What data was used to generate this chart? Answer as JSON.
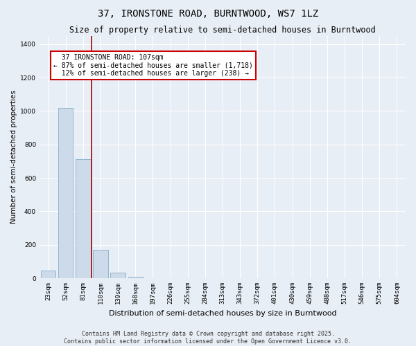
{
  "title": "37, IRONSTONE ROAD, BURNTWOOD, WS7 1LZ",
  "subtitle": "Size of property relative to semi-detached houses in Burntwood",
  "xlabel": "Distribution of semi-detached houses by size in Burntwood",
  "ylabel": "Number of semi-detached properties",
  "categories": [
    "23sqm",
    "52sqm",
    "81sqm",
    "110sqm",
    "139sqm",
    "168sqm",
    "197sqm",
    "226sqm",
    "255sqm",
    "284sqm",
    "313sqm",
    "343sqm",
    "372sqm",
    "401sqm",
    "430sqm",
    "459sqm",
    "488sqm",
    "517sqm",
    "546sqm",
    "575sqm",
    "604sqm"
  ],
  "values": [
    45,
    1020,
    710,
    170,
    35,
    10,
    0,
    0,
    0,
    0,
    0,
    0,
    0,
    0,
    0,
    0,
    0,
    0,
    0,
    0,
    0
  ],
  "bar_color": "#ccdaea",
  "bar_edge_color": "#8aafc8",
  "vline_x": 2.5,
  "vline_color": "#aa0000",
  "annotation_text": "  37 IRONSTONE ROAD: 107sqm  \n← 87% of semi-detached houses are smaller (1,718)\n  12% of semi-detached houses are larger (238) →",
  "annotation_box_color": "#ffffff",
  "annotation_box_edgecolor": "#cc0000",
  "ylim": [
    0,
    1450
  ],
  "yticks": [
    0,
    200,
    400,
    600,
    800,
    1000,
    1200,
    1400
  ],
  "background_color": "#e8eef5",
  "plot_background": "#e8eef5",
  "grid_color": "#ffffff",
  "footer_line1": "Contains HM Land Registry data © Crown copyright and database right 2025.",
  "footer_line2": "Contains public sector information licensed under the Open Government Licence v3.0.",
  "title_fontsize": 10,
  "subtitle_fontsize": 8.5,
  "annotation_fontsize": 7,
  "ylabel_fontsize": 7.5,
  "xlabel_fontsize": 8,
  "footer_fontsize": 6,
  "tick_fontsize": 6.5
}
